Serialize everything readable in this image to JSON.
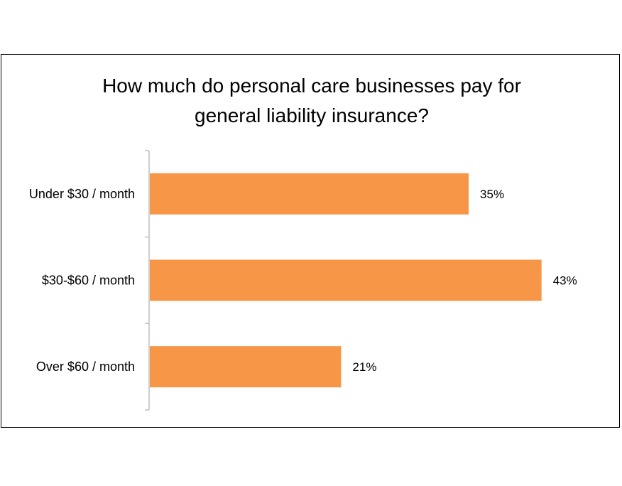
{
  "chart_data": {
    "type": "bar",
    "orientation": "horizontal",
    "title": "How much do personal care businesses pay for general liability insurance?",
    "title_lines": [
      "How much do personal care businesses pay for",
      "general liability insurance?"
    ],
    "categories": [
      "Under $30 / month",
      "$30-$60 / month",
      "Over $60 / month"
    ],
    "values": [
      35,
      43,
      21
    ],
    "value_labels": [
      "35%",
      "43%",
      "21%"
    ],
    "unit": "%",
    "xlim": [
      0,
      50
    ],
    "grid": false,
    "legend": "none",
    "bar_color": "#F79646"
  }
}
